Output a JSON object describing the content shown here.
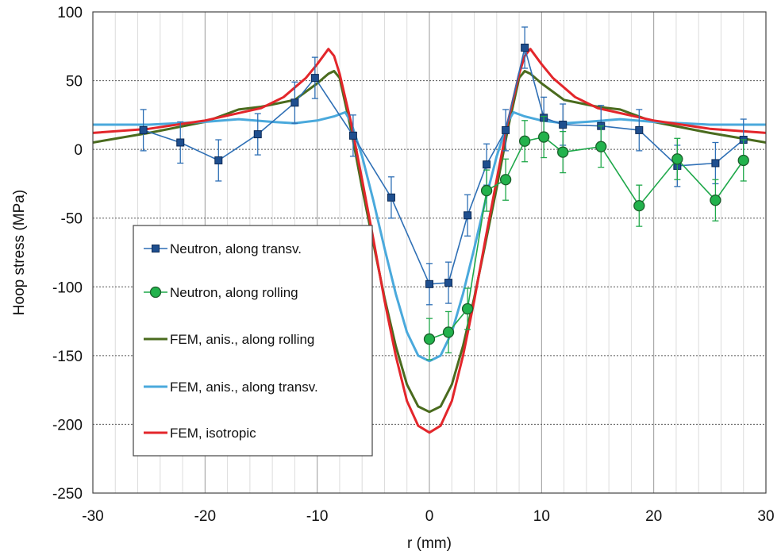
{
  "chart_data": {
    "type": "line",
    "title": "",
    "xlabel": "r (mm)",
    "ylabel": "Hoop  stress (MPa)",
    "xlim": [
      -30,
      30
    ],
    "ylim": [
      -250,
      100
    ],
    "x_ticks": [
      -30,
      -20,
      -10,
      0,
      10,
      20,
      30
    ],
    "y_ticks": [
      -250,
      -200,
      -150,
      -100,
      -50,
      0,
      50,
      100
    ],
    "x_tick_labels": [
      "-30",
      "-20",
      "-10",
      "0",
      "10",
      "20",
      "30"
    ],
    "y_tick_labels": [
      "-250",
      "-200",
      "-150",
      "-100",
      "-50",
      "0",
      "50",
      "100"
    ],
    "x_minor_step": 2,
    "grid": true,
    "legend_position": "center-left",
    "series": [
      {
        "name": "Neutron, along transv.",
        "color": "#2e6fb5",
        "marker": "square",
        "x": [
          -25.5,
          -22.2,
          -18.8,
          -15.3,
          -12.0,
          -10.2,
          -6.8,
          -3.4,
          0,
          1.7,
          3.4,
          5.1,
          6.8,
          8.5,
          10.2,
          11.9,
          15.3,
          18.7,
          22.1,
          25.5,
          28.0
        ],
        "y": [
          14,
          5,
          -8,
          11,
          34,
          52,
          10,
          -35,
          -98,
          -97,
          -48,
          -11,
          14,
          74,
          23,
          18,
          17,
          14,
          -12,
          -10,
          7
        ],
        "err": [
          15,
          15,
          15,
          15,
          15,
          15,
          15,
          15,
          15,
          15,
          15,
          15,
          15,
          15,
          15,
          15,
          15,
          15,
          15,
          15,
          15
        ]
      },
      {
        "name": "Neutron, along rolling",
        "color": "#1fa84a",
        "marker": "circle",
        "x": [
          0,
          1.7,
          3.4,
          5.1,
          6.8,
          8.5,
          10.2,
          11.9,
          15.3,
          18.7,
          22.1,
          25.5,
          28.0
        ],
        "y": [
          -138,
          -133,
          -116,
          -30,
          -22,
          6,
          9,
          -2,
          2,
          -41,
          -7,
          -37,
          -8
        ],
        "err": [
          15,
          15,
          15,
          15,
          15,
          15,
          15,
          15,
          15,
          15,
          15,
          15,
          15
        ]
      },
      {
        "name": "FEM, anis., along rolling",
        "color": "#4a6b1e",
        "marker": "none",
        "x": [
          -30,
          -25,
          -20,
          -17,
          -15,
          -12,
          -10,
          -9,
          -8.5,
          -8,
          -7,
          -6,
          -5,
          -4,
          -3,
          -2,
          -1,
          0,
          1,
          2,
          3,
          4,
          5,
          6,
          7,
          8,
          8.5,
          9,
          10,
          12,
          15,
          17,
          20,
          25,
          30
        ],
        "y": [
          5,
          12,
          20,
          29,
          31,
          36,
          48,
          55,
          57,
          52,
          15,
          -28,
          -68,
          -108,
          -143,
          -171,
          -187,
          -191,
          -187,
          -171,
          -143,
          -108,
          -68,
          -28,
          15,
          52,
          57,
          55,
          48,
          36,
          31,
          29,
          20,
          12,
          5
        ]
      },
      {
        "name": "FEM, anis., along transv.",
        "color": "#4aa9dc",
        "marker": "none",
        "x": [
          -30,
          -25,
          -20,
          -17,
          -14,
          -12,
          -10,
          -8.5,
          -7.5,
          -7,
          -6,
          -5,
          -4,
          -3,
          -2,
          -1,
          0,
          1,
          2,
          3,
          4,
          5,
          6,
          7,
          7.5,
          8.5,
          10,
          12,
          14,
          17,
          20,
          25,
          30
        ],
        "y": [
          18,
          18,
          20,
          22,
          20,
          19,
          21,
          24,
          27,
          20,
          -5,
          -37,
          -72,
          -105,
          -133,
          -150,
          -154,
          -150,
          -133,
          -105,
          -72,
          -37,
          -5,
          20,
          27,
          24,
          21,
          19,
          20,
          22,
          20,
          18,
          18
        ]
      },
      {
        "name": "FEM, isotropic",
        "color": "#e3262b",
        "marker": "none",
        "x": [
          -30,
          -25,
          -20,
          -15,
          -13,
          -11,
          -10,
          -9,
          -8.5,
          -8,
          -7,
          -6,
          -5,
          -4,
          -3,
          -2,
          -1,
          0,
          1,
          2,
          3,
          4,
          5,
          6,
          7,
          8,
          8.5,
          9,
          10,
          11,
          13,
          15,
          20,
          25,
          30
        ],
        "y": [
          12,
          15,
          21,
          30,
          38,
          52,
          62,
          73,
          68,
          55,
          20,
          -22,
          -65,
          -110,
          -150,
          -183,
          -201,
          -206,
          -201,
          -183,
          -150,
          -110,
          -65,
          -22,
          20,
          55,
          68,
          73,
          62,
          52,
          38,
          30,
          21,
          15,
          12
        ]
      }
    ]
  }
}
